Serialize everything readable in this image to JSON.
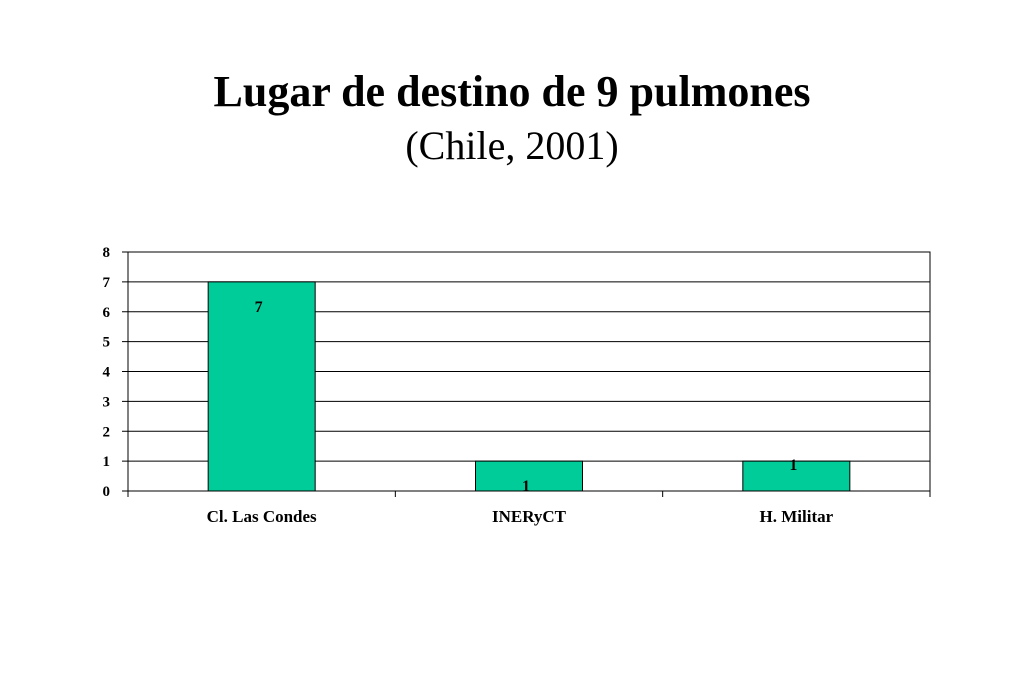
{
  "header": {
    "title": "Lugar de destino de 9 pulmones",
    "subtitle": "(Chile, 2001)"
  },
  "chart_data": {
    "type": "bar",
    "categories": [
      "Cl. Las Condes",
      "INERyCT",
      "H. Militar"
    ],
    "values": [
      7,
      1,
      1
    ],
    "data_labels": [
      "7",
      "1",
      "1"
    ],
    "y_ticks": [
      "0",
      "1",
      "2",
      "3",
      "4",
      "5",
      "6",
      "7",
      "8"
    ],
    "ylim": [
      0,
      8
    ],
    "grid": true,
    "legend": "none",
    "bar_color": "#00CC99"
  }
}
